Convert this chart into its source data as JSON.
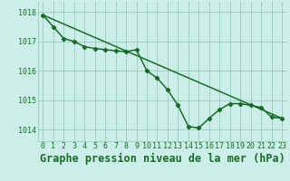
{
  "title": "Graphe pression niveau de la mer (hPa)",
  "background_color": "#cceee8",
  "grid_color": "#99ccbb",
  "line_color": "#1a6b2a",
  "xlim": [
    -0.5,
    23.5
  ],
  "ylim": [
    1013.6,
    1018.35
  ],
  "xticks": [
    0,
    1,
    2,
    3,
    4,
    5,
    6,
    7,
    8,
    9,
    10,
    11,
    12,
    13,
    14,
    15,
    16,
    17,
    18,
    19,
    20,
    21,
    22,
    23
  ],
  "yticks": [
    1014,
    1015,
    1016,
    1017,
    1018
  ],
  "curve_x": [
    0,
    1,
    2,
    3,
    4,
    5,
    6,
    7,
    8,
    9,
    10,
    11,
    12,
    13,
    14,
    15,
    16,
    17,
    18,
    19,
    20,
    21,
    22,
    23
  ],
  "curve_y": [
    1017.9,
    1017.5,
    1017.1,
    1017.0,
    1016.82,
    1016.76,
    1016.72,
    1016.68,
    1016.65,
    1016.72,
    1016.0,
    1015.75,
    1015.35,
    1014.82,
    1014.1,
    1014.05,
    1014.38,
    1014.68,
    1014.88,
    1014.88,
    1014.82,
    1014.75,
    1014.42,
    1014.38
  ],
  "trend_x": [
    0,
    23
  ],
  "trend_y": [
    1017.9,
    1014.38
  ],
  "title_fontsize": 8.5,
  "tick_fontsize": 6.0,
  "marker": "D",
  "marker_size": 2.2,
  "linewidth": 1.1
}
